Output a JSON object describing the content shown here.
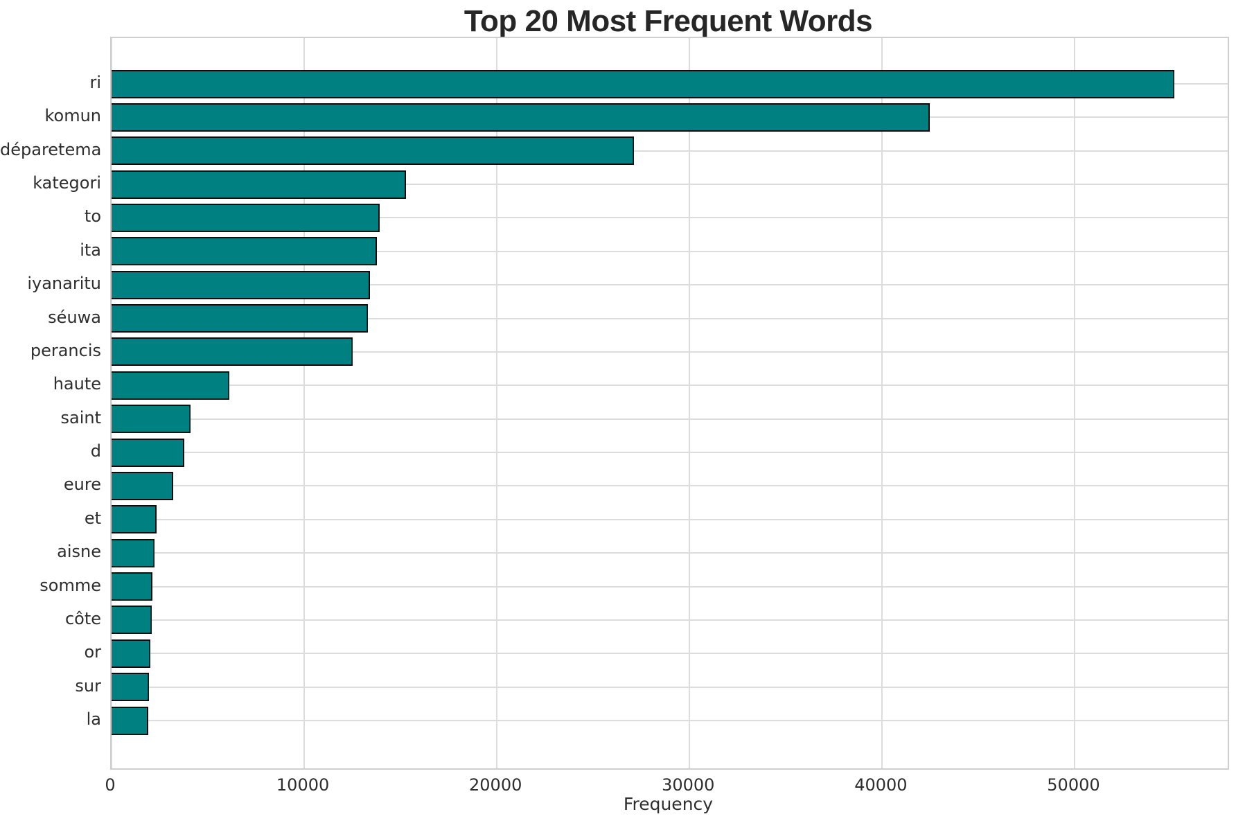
{
  "chart_data": {
    "type": "bar",
    "orientation": "horizontal",
    "title": "Top 20 Most Frequent Words",
    "xlabel": "Frequency",
    "ylabel": "",
    "categories": [
      "ri",
      "komun",
      "déparetema",
      "kategori",
      "to",
      "ita",
      "iyanaritu",
      "séuwa",
      "perancis",
      "haute",
      "saint",
      "d",
      "eure",
      "et",
      "aisne",
      "somme",
      "côte",
      "or",
      "sur",
      "la"
    ],
    "values": [
      55170,
      42480,
      27110,
      15290,
      13930,
      13790,
      13400,
      13300,
      12520,
      6120,
      4090,
      3770,
      3190,
      2330,
      2240,
      2110,
      2070,
      2020,
      1950,
      1920
    ],
    "xticks": [
      0,
      10000,
      20000,
      30000,
      40000,
      50000
    ],
    "xtick_labels": [
      "0",
      "10000",
      "20000",
      "30000",
      "40000",
      "50000"
    ],
    "xlim": [
      0,
      57930
    ],
    "grid": true,
    "legend": null,
    "colors": {
      "bar_fill": "#008080",
      "bar_edge": "#0d0d0d",
      "gridline": "#dcdcdc",
      "spine": "#cfcfcf",
      "tick_text": "#2e2e2e",
      "title_text": "#262626",
      "background": "#ffffff"
    }
  }
}
